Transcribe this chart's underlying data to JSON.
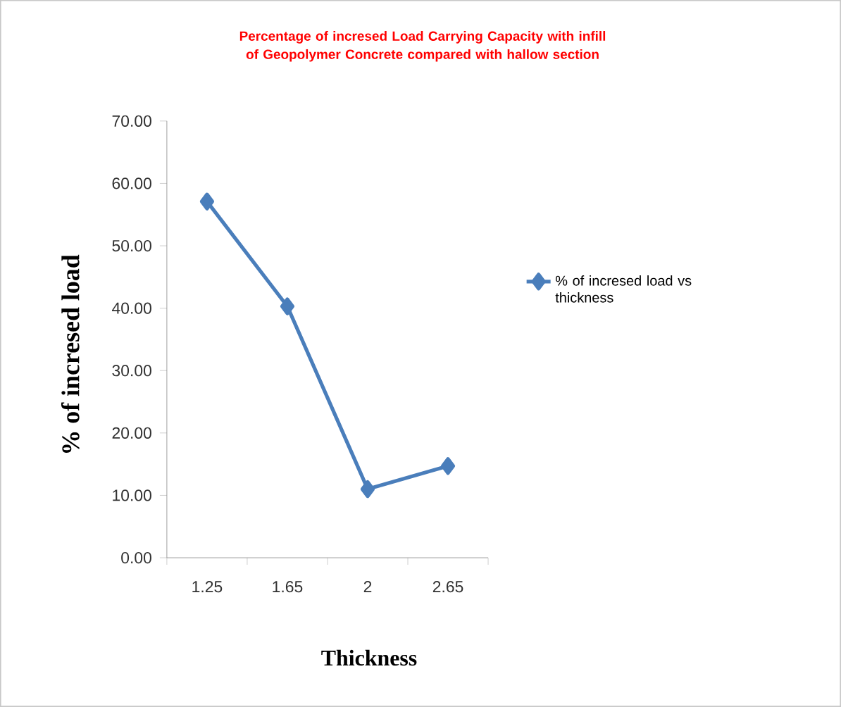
{
  "chart_data": {
    "type": "line",
    "title": "Percentage of  incresed Load Carrying Capacity with infill of Geopolymer  Concrete compared with hallow section",
    "xlabel": "Thickness",
    "ylabel": "% of incresed load",
    "categories": [
      "1.25",
      "1.65",
      "2",
      "2.65"
    ],
    "series": [
      {
        "name": "% of incresed  load vs thickness",
        "color": "#4a7ebb",
        "values": [
          57.1,
          40.3,
          11.0,
          14.7
        ]
      }
    ],
    "ylim": [
      0,
      70
    ],
    "yticks": [
      {
        "value": 0,
        "label": "0.00"
      },
      {
        "value": 10,
        "label": "10.00"
      },
      {
        "value": 20,
        "label": "20.00"
      },
      {
        "value": 30,
        "label": "30.00"
      },
      {
        "value": 40,
        "label": "40.00"
      },
      {
        "value": 50,
        "label": "50.00"
      },
      {
        "value": 60,
        "label": "60.00"
      },
      {
        "value": 70,
        "label": "70.00"
      }
    ],
    "grid": false,
    "legend": "right",
    "marker": "diamond",
    "line_style": "solid"
  }
}
